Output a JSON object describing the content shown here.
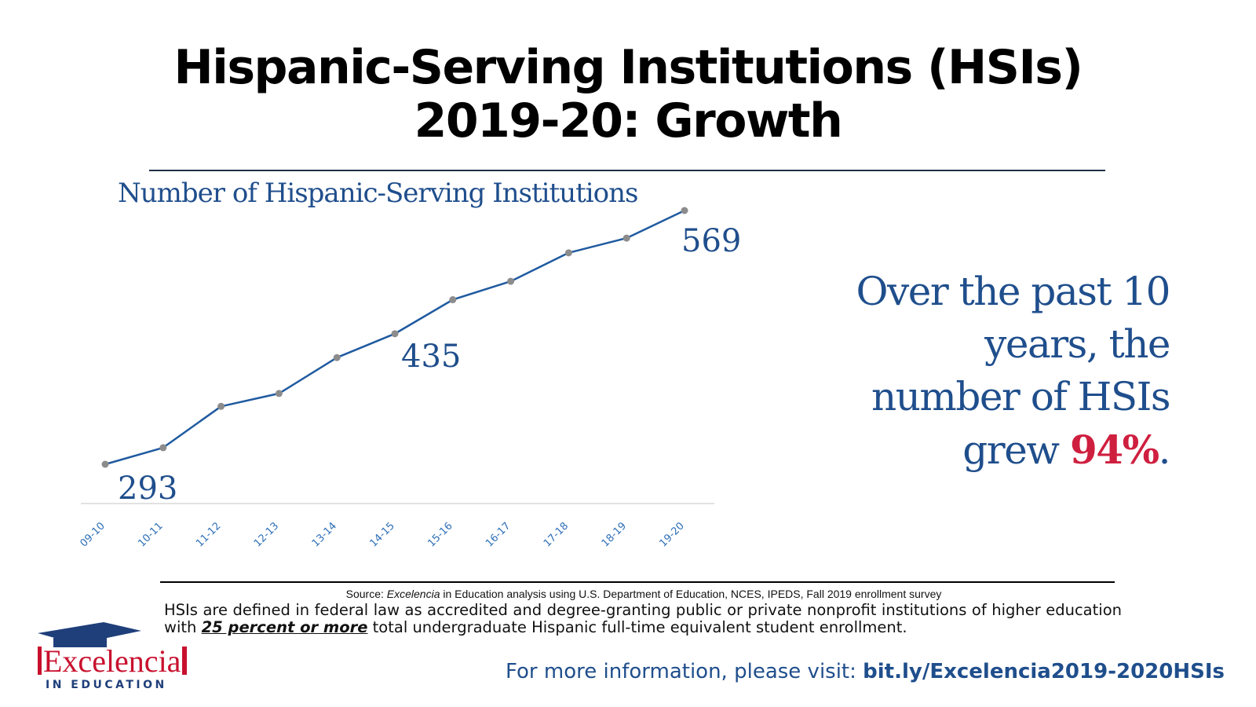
{
  "title": {
    "line1": "Hispanic-Serving Institutions (HSIs)",
    "line2": "2019-20: Growth"
  },
  "chart_data": {
    "type": "line",
    "title": "Number of Hispanic-Serving Institutions",
    "categories": [
      "09-10",
      "10-11",
      "11-12",
      "12-13",
      "13-14",
      "14-15",
      "15-16",
      "16-17",
      "17-18",
      "18-19",
      "19-20"
    ],
    "series": [
      {
        "values": [
          293,
          311,
          356,
          370,
          409,
          435,
          472,
          492,
          523,
          539,
          569
        ]
      }
    ],
    "data_labels": [
      {
        "index": 0,
        "text": "293"
      },
      {
        "index": 5,
        "text": "435"
      },
      {
        "index": 10,
        "text": "569"
      }
    ],
    "ylim": [
      250,
      600
    ],
    "grid": false,
    "line_color": "#1f5aa0",
    "marker_color": "#8c8c8c",
    "label_color": "#1f4e8c",
    "tick_color": "#2e6fb7"
  },
  "callout": {
    "line1": "Over the past 10",
    "line2": "years, the",
    "line3": "number of HSIs",
    "line4_prefix": "grew ",
    "percent": "94%",
    "line4_suffix": ".",
    "color": "#1f4e8c",
    "highlight_color": "#cf1f3f"
  },
  "source": {
    "prefix": "Source: ",
    "emphasis": "Excelencia",
    "rest": " in Education analysis using U.S. Department of Education, NCES, IPEDS, Fall 2019 enrollment survey"
  },
  "definition": {
    "before": "HSIs are defined in federal law as accredited and degree-granting public or private nonprofit institutions of higher education with ",
    "emphasis": "25 percent or more",
    "after": " total undergraduate Hispanic full-time equivalent student enrollment."
  },
  "footer": {
    "prefix": "For more information, please visit: ",
    "link": "bit.ly/Excelencia2019-2020HSIs"
  },
  "logo": {
    "word": "Excelencia",
    "sub": "IN EDUCATION",
    "icon": "graduation-cap-icon"
  }
}
